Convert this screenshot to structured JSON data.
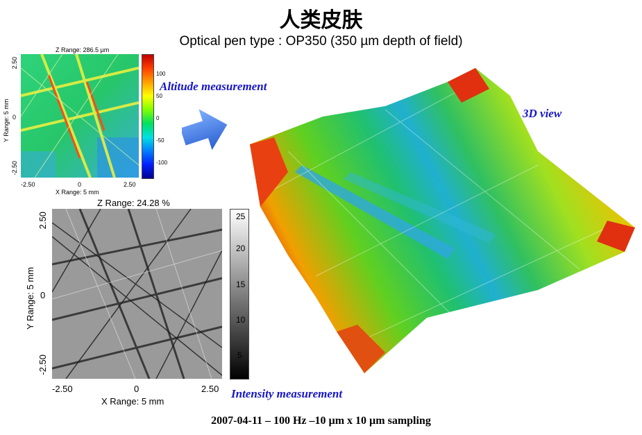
{
  "title": "人类皮肤",
  "subtitle": "Optical pen type : OP350 (350 µm depth of field)",
  "altitude_map": {
    "z_range": "Z Range: 286.5 µm",
    "y_range_label": "Y Range: 5 mm",
    "x_range_label": "X Range: 5 mm",
    "x_ticks": [
      "-2.50",
      "0",
      "2.50"
    ],
    "y_ticks": [
      "2.50",
      "0",
      "-2.50"
    ],
    "colorbar_ticks": [
      "100",
      "50",
      "0",
      "-50",
      "-100"
    ]
  },
  "altitude_label": "Altitude measurement",
  "intensity_map": {
    "z_range": "Z Range:  24.28 %",
    "y_range_label": "Y Range: 5 mm",
    "x_range_label": "X Range: 5 mm",
    "x_ticks": [
      "-2.50",
      "0",
      "2.50"
    ],
    "y_ticks": [
      "2.50",
      "0",
      "-2.50"
    ],
    "colorbar_ticks": [
      "25",
      "20",
      "15",
      "10",
      "5"
    ]
  },
  "intensity_label": "Intensity measurement",
  "view3d_label": "3D view",
  "footer": "2007-04-11 – 100 Hz –10 µm x 10 µm sampling",
  "colors": {
    "label_blue": "#1515c8",
    "arrow_blue": "#3a78e0"
  },
  "icons": {
    "arrow": "arrow-right-icon"
  }
}
